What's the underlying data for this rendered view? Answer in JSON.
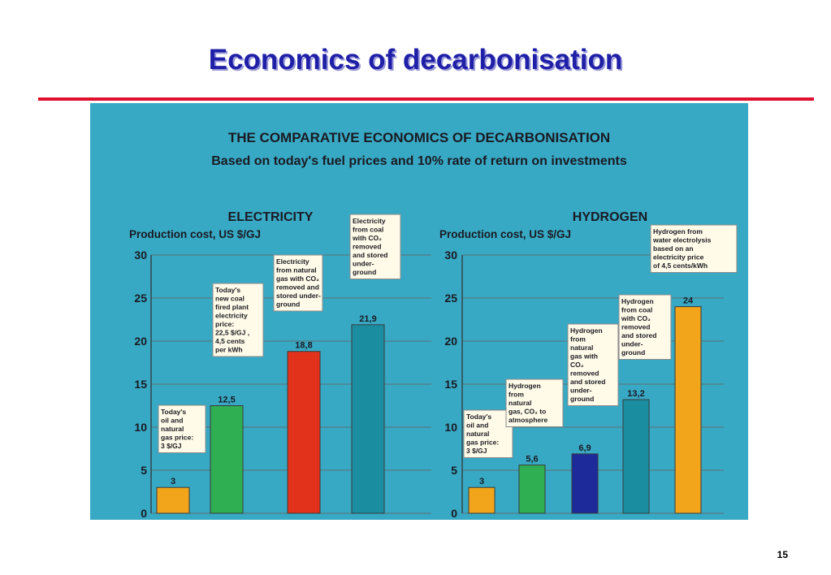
{
  "slide": {
    "title": "Economics of decarbonisation",
    "page_number": "15"
  },
  "chart_data": [
    {
      "type": "bar",
      "title": "THE COMPARATIVE ECONOMICS OF DECARBONISATION",
      "subtitle": "Based on today's fuel prices and 10% rate of return on investments",
      "panel": "ELECTRICITY",
      "ylabel": "Production cost, US $/GJ",
      "ylim": [
        0,
        30
      ],
      "yticks": [
        "30",
        "25",
        "20",
        "15",
        "10",
        "5",
        "0"
      ],
      "grid": true,
      "series": [
        {
          "values": [
            3,
            12.5,
            18.8,
            21.9
          ],
          "value_labels": [
            "3",
            "12,5",
            "18,8",
            "21,9"
          ],
          "colors": [
            "#f2a51a",
            "#2fae52",
            "#e2321c",
            "#1a8ea0"
          ],
          "notes": [
            [
              "Today's",
              "oil and",
              "natural",
              "gas price:",
              "3 $/GJ"
            ],
            [
              "Today's",
              "new  coal",
              "fired plant",
              "electricity",
              "price:",
              "22,5 $/GJ ,",
              "4,5 cents",
              "per kWh"
            ],
            [
              "Electricity",
              "from natural",
              "gas with CO₂",
              "removed and",
              "stored under-",
              "ground"
            ],
            [
              "Electricity",
              "from coal",
              "with CO₂",
              "removed",
              "and stored",
              "under-",
              "ground"
            ]
          ]
        }
      ]
    },
    {
      "type": "bar",
      "panel": "HYDROGEN",
      "ylabel": "Production cost, US $/GJ",
      "ylim": [
        0,
        30
      ],
      "yticks": [
        "30",
        "25",
        "20",
        "15",
        "10",
        "5",
        "0"
      ],
      "grid": true,
      "series": [
        {
          "values": [
            3,
            5.6,
            6.9,
            13.2,
            24
          ],
          "value_labels": [
            "3",
            "5,6",
            "6,9",
            "13,2",
            "24"
          ],
          "colors": [
            "#f2a51a",
            "#2fae52",
            "#1c2a9a",
            "#1a8ea0",
            "#f2a51a"
          ],
          "notes": [
            [
              "Today's",
              "oil and",
              "natural",
              "gas price:",
              "3 $/GJ"
            ],
            [
              "Hydrogen",
              "from",
              "natural",
              "gas, CO₂ to",
              "atmosphere"
            ],
            [
              "Hydrogen",
              "from",
              "natural",
              "gas with",
              "CO₂",
              "removed",
              "and stored",
              "under-",
              "ground"
            ],
            [
              "Hydrogen",
              "from coal",
              "with CO₂",
              "removed",
              "and stored",
              "under-",
              "ground"
            ],
            [
              "Hydrogen from",
              "water electrolysis",
              "based on an",
              "electricity price",
              "of 4,5 cents/kWh"
            ]
          ]
        }
      ]
    }
  ]
}
